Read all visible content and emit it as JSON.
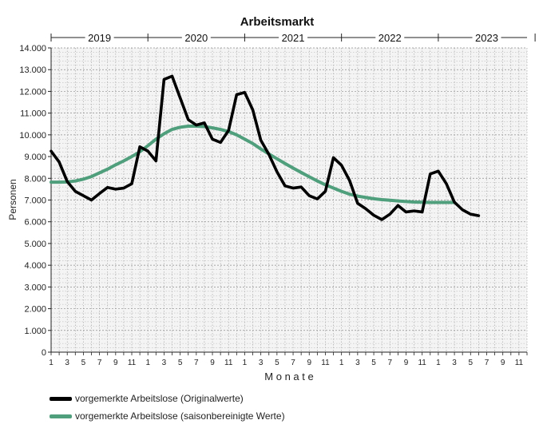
{
  "chart_data": {
    "type": "line",
    "title": "Arbeitsmarkt",
    "xlabel": "M o n a t e",
    "ylabel": "Personen",
    "ylim": [
      0,
      14000
    ],
    "yticks": [
      0,
      1000,
      2000,
      3000,
      4000,
      5000,
      6000,
      7000,
      8000,
      9000,
      10000,
      11000,
      12000,
      13000,
      14000
    ],
    "ytick_labels": [
      "0",
      "1.000",
      "2.000",
      "3.000",
      "4.000",
      "5.000",
      "6.000",
      "7.000",
      "8.000",
      "9.000",
      "10.000",
      "11.000",
      "12.000",
      "13.000",
      "14.000"
    ],
    "years": [
      "2019",
      "2020",
      "2021",
      "2022",
      "2023"
    ],
    "month_tick_labels": [
      "1",
      "3",
      "5",
      "7",
      "9",
      "11"
    ],
    "grid": true,
    "legend_position": "bottom-left",
    "series": [
      {
        "name": "vorgemerkte Arbeitslose (Originalwerte)",
        "color": "#000000",
        "x": [
          1,
          2,
          3,
          4,
          5,
          6,
          7,
          8,
          9,
          10,
          11,
          12,
          13,
          14,
          15,
          16,
          17,
          18,
          19,
          20,
          21,
          22,
          23,
          24,
          25,
          26,
          27,
          28,
          29,
          30,
          31,
          32,
          33,
          34,
          35,
          36,
          37,
          38,
          39,
          40,
          41,
          42,
          43,
          44,
          45,
          46,
          47,
          48,
          49,
          50,
          51,
          52,
          53,
          54
        ],
        "values": [
          9250,
          8750,
          7850,
          7400,
          7200,
          7000,
          7300,
          7580,
          7500,
          7550,
          7750,
          9450,
          9250,
          8800,
          12550,
          12700,
          11700,
          10700,
          10450,
          10550,
          9800,
          9650,
          10200,
          11850,
          11950,
          11150,
          9750,
          9100,
          8300,
          7650,
          7550,
          7600,
          7200,
          7050,
          7400,
          8950,
          8600,
          7900,
          6850,
          6600,
          6300,
          6100,
          6350,
          6750,
          6450,
          6500,
          6450,
          8200,
          8330,
          7750,
          6900,
          6550,
          6350,
          6280
        ]
      },
      {
        "name": "vorgemerkte Arbeitslose (saisonbereinigte Werte)",
        "color": "#4f9e7c",
        "x": [
          1,
          2,
          3,
          4,
          5,
          6,
          7,
          8,
          9,
          10,
          11,
          12,
          13,
          14,
          15,
          16,
          17,
          18,
          19,
          20,
          21,
          22,
          23,
          24,
          25,
          26,
          27,
          28,
          29,
          30,
          31,
          32,
          33,
          34,
          35,
          36,
          37,
          38,
          39,
          40,
          41,
          42,
          43,
          44,
          45,
          46,
          47,
          48,
          49,
          50,
          51
        ],
        "values": [
          7820,
          7820,
          7830,
          7880,
          7960,
          8080,
          8250,
          8420,
          8620,
          8800,
          9000,
          9220,
          9500,
          9800,
          10050,
          10250,
          10350,
          10400,
          10400,
          10380,
          10320,
          10250,
          10150,
          10000,
          9800,
          9600,
          9350,
          9120,
          8900,
          8680,
          8470,
          8270,
          8070,
          7880,
          7700,
          7550,
          7400,
          7270,
          7180,
          7120,
          7060,
          7020,
          6990,
          6960,
          6930,
          6910,
          6900,
          6890,
          6890,
          6890,
          6890
        ]
      }
    ]
  }
}
